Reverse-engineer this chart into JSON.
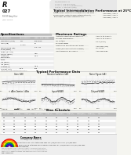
{
  "bg_color": "#f5f5f0",
  "white": "#ffffff",
  "gray_light": "#e8e8e8",
  "gray_mid": "#bbbbbb",
  "gray_dark": "#777777",
  "black": "#111111",
  "top_left_tri_color": "#ffffff",
  "top_gray_stripe": "#cccccc",
  "header_box_color": "#e0e0e0",
  "footer_bg": "#eeeeee",
  "logo_colors": [
    "#ee1111",
    "#ff8800",
    "#ffee00",
    "#22bb00",
    "#0033cc",
    "#7700bb"
  ],
  "graph_border": "#999999",
  "graph_bg": "#f8f8f8",
  "graph_line": "#333333",
  "graph_grid": "#dddddd",
  "table_header_bg": "#bbbbbb",
  "table_row_alt": "#eeeeee"
}
